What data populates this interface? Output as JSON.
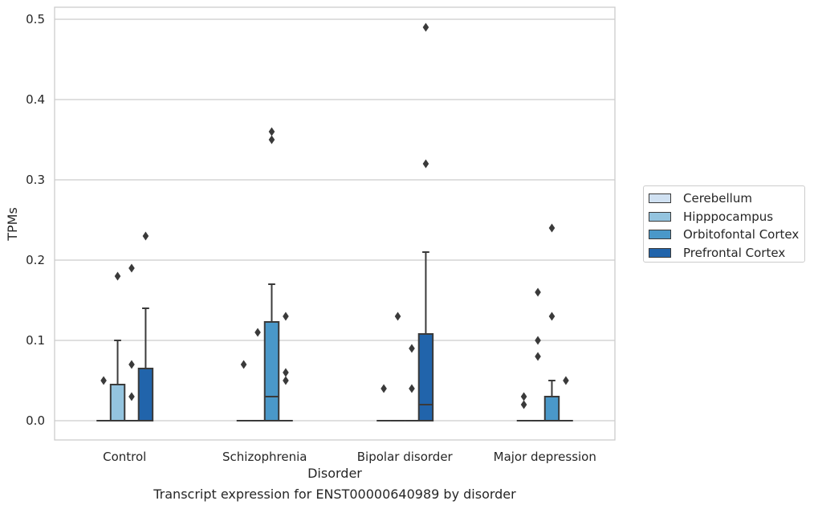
{
  "chart_data": {
    "type": "box",
    "title": "",
    "caption": "Transcript expression for ENST00000640989 by disorder",
    "xlabel": "Disorder",
    "ylabel": "TPMs",
    "categories": [
      "Control",
      "Schizophrenia",
      "Bipolar disorder",
      "Major depression"
    ],
    "yticks": [
      "0.0",
      "0.1",
      "0.2",
      "0.3",
      "0.4",
      "0.5"
    ],
    "ytick_values": [
      0.0,
      0.1,
      0.2,
      0.3,
      0.4,
      0.5
    ],
    "ylim": [
      -0.024,
      0.515
    ],
    "grid": true,
    "legend_position": "right",
    "colors": {
      "Cerebellum": "#d0e1f2",
      "Hipppocampus": "#94c4df",
      "Orbitofontal Cortex": "#4a98c9",
      "Prefrontal Cortex": "#2164ab",
      "box_edge": "#3a3a3a",
      "grid": "#cccccc"
    },
    "series": [
      {
        "name": "Cerebellum",
        "boxes": [
          {
            "q1": 0,
            "median": 0,
            "q3": 0,
            "whisker_low": 0,
            "whisker_high": 0,
            "outliers": [
              0.05
            ]
          },
          {
            "q1": 0,
            "median": 0,
            "q3": 0,
            "whisker_low": 0,
            "whisker_high": 0,
            "outliers": [
              0.07
            ]
          },
          {
            "q1": 0,
            "median": 0,
            "q3": 0,
            "whisker_low": 0,
            "whisker_high": 0,
            "outliers": [
              0.04
            ]
          },
          {
            "q1": 0,
            "median": 0,
            "q3": 0,
            "whisker_low": 0,
            "whisker_high": 0,
            "outliers": [
              0.03,
              0.02
            ]
          }
        ]
      },
      {
        "name": "Hipppocampus",
        "boxes": [
          {
            "q1": 0,
            "median": 0,
            "q3": 0.045,
            "whisker_low": 0,
            "whisker_high": 0.1,
            "outliers": [
              0.18
            ]
          },
          {
            "q1": 0,
            "median": 0,
            "q3": 0,
            "whisker_low": 0,
            "whisker_high": 0,
            "outliers": [
              0.11
            ]
          },
          {
            "q1": 0,
            "median": 0,
            "q3": 0,
            "whisker_low": 0,
            "whisker_high": 0,
            "outliers": [
              0.13
            ]
          },
          {
            "q1": 0,
            "median": 0,
            "q3": 0,
            "whisker_low": 0,
            "whisker_high": 0,
            "outliers": [
              0.16,
              0.1,
              0.08
            ]
          }
        ]
      },
      {
        "name": "Orbitofontal Cortex",
        "boxes": [
          {
            "q1": 0,
            "median": 0,
            "q3": 0,
            "whisker_low": 0,
            "whisker_high": 0,
            "outliers": [
              0.19,
              0.07,
              0.03
            ]
          },
          {
            "q1": 0,
            "median": 0.03,
            "q3": 0.123,
            "whisker_low": 0,
            "whisker_high": 0.17,
            "outliers": [
              0.36,
              0.35
            ]
          },
          {
            "q1": 0,
            "median": 0,
            "q3": 0,
            "whisker_low": 0,
            "whisker_high": 0,
            "outliers": [
              0.09,
              0.04
            ]
          },
          {
            "q1": 0,
            "median": 0,
            "q3": 0.03,
            "whisker_low": 0,
            "whisker_high": 0.05,
            "outliers": [
              0.24,
              0.13
            ]
          }
        ]
      },
      {
        "name": "Prefrontal Cortex",
        "boxes": [
          {
            "q1": 0,
            "median": 0,
            "q3": 0.065,
            "whisker_low": 0,
            "whisker_high": 0.14,
            "outliers": [
              0.23
            ]
          },
          {
            "q1": 0,
            "median": 0,
            "q3": 0,
            "whisker_low": 0,
            "whisker_high": 0,
            "outliers": [
              0.13,
              0.06,
              0.05
            ]
          },
          {
            "q1": 0,
            "median": 0.02,
            "q3": 0.108,
            "whisker_low": 0,
            "whisker_high": 0.21,
            "outliers": [
              0.49,
              0.32
            ]
          },
          {
            "q1": 0,
            "median": 0,
            "q3": 0,
            "whisker_low": 0,
            "whisker_high": 0,
            "outliers": [
              0.05
            ]
          }
        ]
      }
    ]
  }
}
